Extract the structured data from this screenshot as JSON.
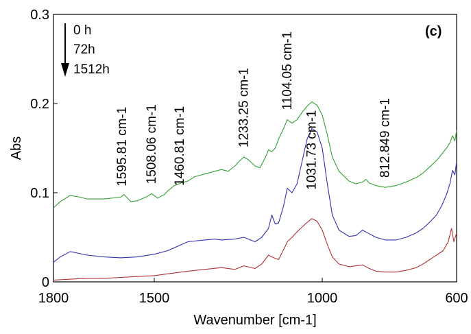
{
  "chart_data": {
    "type": "line",
    "title": "",
    "panel_label": "(c)",
    "xlabel": "Wavenumber [cm-1]",
    "ylabel": "Abs",
    "xlim": [
      1800,
      600
    ],
    "ylim": [
      0,
      0.3
    ],
    "x_reversed": true,
    "grid": false,
    "x_ticks": [
      {
        "value": 1800,
        "label": "1800"
      },
      {
        "value": 1500,
        "label": "1500"
      },
      {
        "value": 1000,
        "label": "1000"
      },
      {
        "value": 600,
        "label": "600"
      }
    ],
    "y_ticks": [
      {
        "value": 0,
        "label": "0"
      },
      {
        "value": 0.1,
        "label": "0.1"
      },
      {
        "value": 0.2,
        "label": "0.2"
      },
      {
        "value": 0.3,
        "label": "0.3"
      }
    ],
    "legend": {
      "placement": "top-left",
      "entries": [
        "0 h",
        "72h",
        "1512h"
      ],
      "arrow": "down"
    },
    "series": [
      {
        "color": "#b03030",
        "points": [
          [
            1800,
            0.002
          ],
          [
            1750,
            0.003
          ],
          [
            1700,
            0.004
          ],
          [
            1650,
            0.004
          ],
          [
            1600,
            0.005
          ],
          [
            1550,
            0.006
          ],
          [
            1500,
            0.007
          ],
          [
            1460,
            0.009
          ],
          [
            1400,
            0.012
          ],
          [
            1350,
            0.014
          ],
          [
            1300,
            0.016
          ],
          [
            1260,
            0.014
          ],
          [
            1233,
            0.018
          ],
          [
            1200,
            0.015
          ],
          [
            1180,
            0.02
          ],
          [
            1160,
            0.03
          ],
          [
            1150,
            0.028
          ],
          [
            1130,
            0.025
          ],
          [
            1110,
            0.04
          ],
          [
            1104,
            0.045
          ],
          [
            1090,
            0.05
          ],
          [
            1070,
            0.058
          ],
          [
            1050,
            0.065
          ],
          [
            1031,
            0.071
          ],
          [
            1015,
            0.068
          ],
          [
            1000,
            0.058
          ],
          [
            985,
            0.042
          ],
          [
            970,
            0.028
          ],
          [
            950,
            0.02
          ],
          [
            920,
            0.017
          ],
          [
            900,
            0.018
          ],
          [
            880,
            0.019
          ],
          [
            860,
            0.015
          ],
          [
            840,
            0.012
          ],
          [
            812,
            0.011
          ],
          [
            780,
            0.011
          ],
          [
            750,
            0.013
          ],
          [
            720,
            0.016
          ],
          [
            700,
            0.02
          ],
          [
            680,
            0.025
          ],
          [
            660,
            0.03
          ],
          [
            640,
            0.035
          ],
          [
            625,
            0.045
          ],
          [
            615,
            0.06
          ],
          [
            608,
            0.045
          ],
          [
            600,
            0.055
          ]
        ]
      },
      {
        "color": "#3030b0",
        "points": [
          [
            1800,
            0.022
          ],
          [
            1780,
            0.028
          ],
          [
            1750,
            0.034
          ],
          [
            1700,
            0.03
          ],
          [
            1650,
            0.028
          ],
          [
            1600,
            0.027
          ],
          [
            1550,
            0.028
          ],
          [
            1500,
            0.031
          ],
          [
            1460,
            0.035
          ],
          [
            1430,
            0.04
          ],
          [
            1400,
            0.045
          ],
          [
            1350,
            0.047
          ],
          [
            1320,
            0.048
          ],
          [
            1300,
            0.047
          ],
          [
            1260,
            0.048
          ],
          [
            1233,
            0.05
          ],
          [
            1200,
            0.045
          ],
          [
            1180,
            0.05
          ],
          [
            1160,
            0.06
          ],
          [
            1150,
            0.075
          ],
          [
            1140,
            0.065
          ],
          [
            1130,
            0.066
          ],
          [
            1115,
            0.085
          ],
          [
            1104,
            0.105
          ],
          [
            1090,
            0.1
          ],
          [
            1075,
            0.11
          ],
          [
            1060,
            0.135
          ],
          [
            1045,
            0.16
          ],
          [
            1031,
            0.172
          ],
          [
            1015,
            0.168
          ],
          [
            1000,
            0.15
          ],
          [
            985,
            0.11
          ],
          [
            970,
            0.075
          ],
          [
            950,
            0.058
          ],
          [
            920,
            0.051
          ],
          [
            900,
            0.052
          ],
          [
            880,
            0.058
          ],
          [
            860,
            0.054
          ],
          [
            840,
            0.05
          ],
          [
            812,
            0.047
          ],
          [
            780,
            0.047
          ],
          [
            750,
            0.05
          ],
          [
            720,
            0.055
          ],
          [
            700,
            0.06
          ],
          [
            680,
            0.067
          ],
          [
            660,
            0.075
          ],
          [
            645,
            0.085
          ],
          [
            630,
            0.098
          ],
          [
            620,
            0.11
          ],
          [
            612,
            0.125
          ],
          [
            605,
            0.12
          ],
          [
            600,
            0.135
          ]
        ]
      },
      {
        "color": "#30a030",
        "points": [
          [
            1800,
            0.083
          ],
          [
            1780,
            0.09
          ],
          [
            1750,
            0.097
          ],
          [
            1720,
            0.095
          ],
          [
            1700,
            0.093
          ],
          [
            1650,
            0.093
          ],
          [
            1600,
            0.095
          ],
          [
            1590,
            0.098
          ],
          [
            1570,
            0.09
          ],
          [
            1550,
            0.091
          ],
          [
            1520,
            0.096
          ],
          [
            1508,
            0.099
          ],
          [
            1490,
            0.094
          ],
          [
            1470,
            0.098
          ],
          [
            1460,
            0.102
          ],
          [
            1440,
            0.108
          ],
          [
            1420,
            0.111
          ],
          [
            1400,
            0.113
          ],
          [
            1380,
            0.118
          ],
          [
            1350,
            0.121
          ],
          [
            1320,
            0.124
          ],
          [
            1300,
            0.126
          ],
          [
            1280,
            0.124
          ],
          [
            1260,
            0.13
          ],
          [
            1245,
            0.136
          ],
          [
            1233,
            0.14
          ],
          [
            1220,
            0.137
          ],
          [
            1200,
            0.13
          ],
          [
            1185,
            0.128
          ],
          [
            1170,
            0.139
          ],
          [
            1160,
            0.148
          ],
          [
            1150,
            0.146
          ],
          [
            1140,
            0.15
          ],
          [
            1130,
            0.16
          ],
          [
            1115,
            0.172
          ],
          [
            1104,
            0.182
          ],
          [
            1090,
            0.178
          ],
          [
            1075,
            0.182
          ],
          [
            1060,
            0.19
          ],
          [
            1045,
            0.197
          ],
          [
            1031,
            0.202
          ],
          [
            1015,
            0.198
          ],
          [
            1000,
            0.187
          ],
          [
            985,
            0.165
          ],
          [
            970,
            0.14
          ],
          [
            950,
            0.124
          ],
          [
            920,
            0.113
          ],
          [
            900,
            0.11
          ],
          [
            880,
            0.112
          ],
          [
            870,
            0.115
          ],
          [
            860,
            0.111
          ],
          [
            840,
            0.108
          ],
          [
            812,
            0.106
          ],
          [
            780,
            0.108
          ],
          [
            750,
            0.112
          ],
          [
            720,
            0.117
          ],
          [
            700,
            0.122
          ],
          [
            680,
            0.129
          ],
          [
            660,
            0.136
          ],
          [
            645,
            0.143
          ],
          [
            630,
            0.15
          ],
          [
            620,
            0.156
          ],
          [
            612,
            0.164
          ],
          [
            605,
            0.158
          ],
          [
            600,
            0.17
          ]
        ]
      }
    ],
    "annotations": [
      {
        "text": "1595.81 cm-1",
        "x": 1595.81
      },
      {
        "text": "1508.06 cm-1",
        "x": 1508.06
      },
      {
        "text": "1460.81 cm-1",
        "x": 1460.81
      },
      {
        "text": "1233.25 cm-1",
        "x": 1233.25
      },
      {
        "text": "1104.05 cm-1",
        "x": 1104.05
      },
      {
        "text": "1031.73 cm-1",
        "x": 1031.73
      },
      {
        "text": "812.849 cm-1",
        "x": 812.849
      }
    ]
  }
}
